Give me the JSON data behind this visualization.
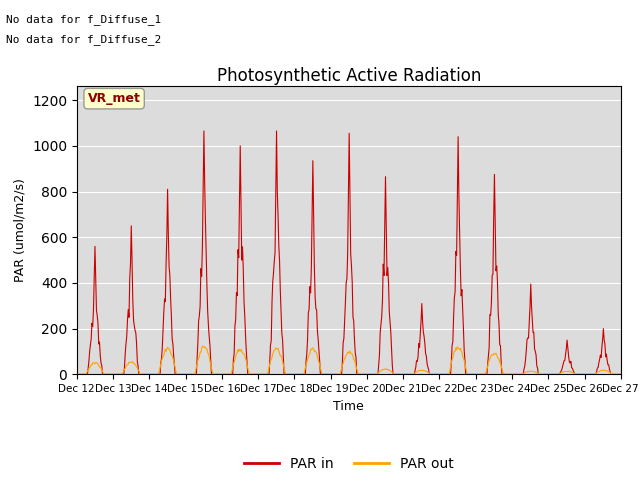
{
  "title": "Photosynthetic Active Radiation",
  "xlabel": "Time",
  "ylabel": "PAR (umol/m2/s)",
  "ylim": [
    0,
    1260
  ],
  "yticks": [
    0,
    200,
    400,
    600,
    800,
    1000,
    1200
  ],
  "annotation1": "No data for f_Diffuse_1",
  "annotation2": "No data for f_Diffuse_2",
  "vr_met_label": "VR_met",
  "legend_labels": [
    "PAR in",
    "PAR out"
  ],
  "par_in_color": "#CC0000",
  "par_out_color": "#FFA500",
  "background_color": "#DCDCDC",
  "title_fontsize": 12,
  "n_days": 15,
  "start_day": 12,
  "day_peaks_in": [
    560,
    650,
    810,
    1065,
    1000,
    1065,
    935,
    1055,
    865,
    310,
    1040,
    875,
    395,
    150,
    200
  ],
  "day_peaks_out": [
    55,
    60,
    120,
    130,
    120,
    120,
    120,
    105,
    25,
    20,
    130,
    100,
    15,
    15,
    20
  ]
}
